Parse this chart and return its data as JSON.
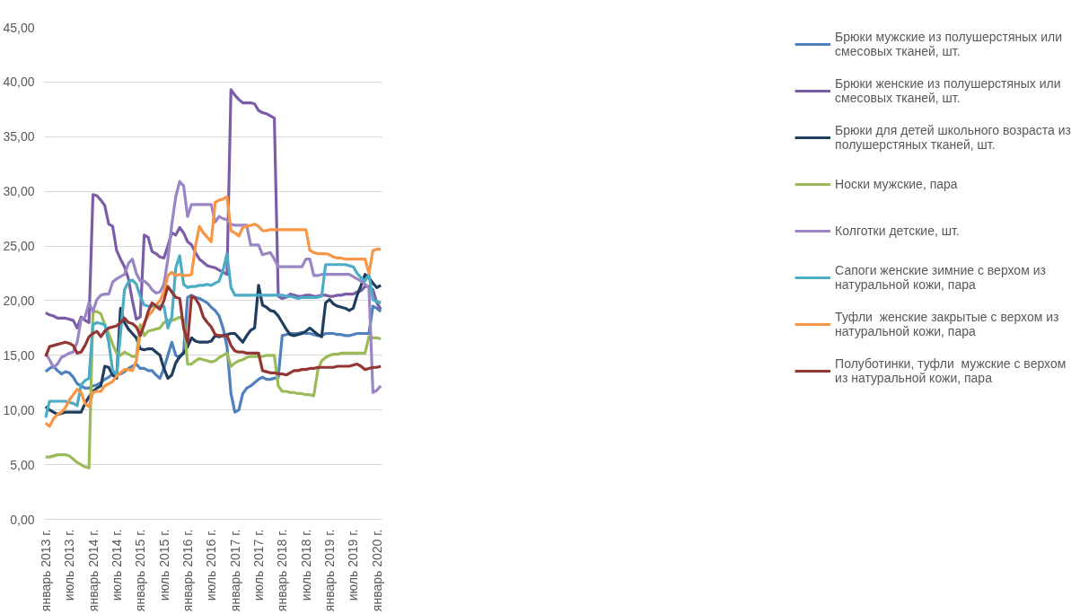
{
  "chart_data": {
    "type": "line",
    "categories": [
      "январь 2013 г.",
      null,
      null,
      null,
      null,
      null,
      "июль 2013 г.",
      null,
      null,
      null,
      null,
      null,
      "январь 2014 г.",
      null,
      null,
      null,
      null,
      null,
      "июль 2014 г.",
      null,
      null,
      null,
      null,
      null,
      "январь 2015 г.",
      null,
      null,
      null,
      null,
      null,
      "июль 2015 г.",
      null,
      null,
      null,
      null,
      null,
      "январь 2016 г.",
      null,
      null,
      null,
      null,
      null,
      "июль 2016 г.",
      null,
      null,
      null,
      null,
      null,
      "январь 2017 г.",
      null,
      null,
      null,
      null,
      null,
      "июль 2017 г.",
      null,
      null,
      null,
      null,
      null,
      "январь 2018 г.",
      null,
      null,
      null,
      null,
      null,
      "июль 2018 г.",
      null,
      null,
      null,
      null,
      null,
      "январь 2019 г.",
      null,
      null,
      null,
      null,
      null,
      "июль 2019 г.",
      null,
      null,
      null,
      null,
      null,
      "январь 2020 г.",
      null
    ],
    "ylim": [
      0,
      45
    ],
    "yticks": [
      {
        "value": 0,
        "label": "0,00"
      },
      {
        "value": 5,
        "label": "5,00"
      },
      {
        "value": 10,
        "label": "10,00"
      },
      {
        "value": 15,
        "label": "15,00"
      },
      {
        "value": 20,
        "label": "20,00"
      },
      {
        "value": 25,
        "label": "25,00"
      },
      {
        "value": 30,
        "label": "30,00"
      },
      {
        "value": 35,
        "label": "35,00"
      },
      {
        "value": 40,
        "label": "40,00"
      },
      {
        "value": 45,
        "label": "45,00"
      }
    ],
    "grid": "y",
    "legend": "right",
    "marker": "none",
    "line_style": "solid",
    "series": [
      {
        "name": "Брюки мужские из полушерстяных или смесовых тканей, шт.",
        "color": "#4f81bd",
        "values": [
          13.5,
          13.8,
          14.0,
          13.6,
          13.3,
          13.5,
          13.4,
          13.0,
          12.4,
          12.2,
          12.0,
          12.0,
          12.2,
          12.3,
          12.5,
          12.8,
          13.0,
          13.3,
          13.2,
          13.3,
          13.5,
          13.8,
          14.0,
          14.2,
          13.8,
          13.8,
          13.6,
          13.6,
          13.2,
          12.9,
          13.8,
          15.0,
          16.2,
          15.0,
          14.8,
          15.3,
          20.3,
          20.5,
          20.3,
          20.2,
          20.0,
          19.8,
          19.4,
          19.1,
          18.6,
          17.5,
          15.8,
          11.5,
          9.8,
          10.0,
          11.5,
          12.0,
          12.2,
          12.5,
          12.8,
          13.0,
          12.8,
          12.8,
          12.9,
          13.0,
          16.8,
          16.9,
          17.0,
          17.0,
          17.0,
          17.1,
          17.0,
          17.0,
          16.9,
          16.8,
          16.8,
          17.0,
          17.0,
          17.0,
          16.9,
          16.9,
          16.8,
          16.8,
          16.9,
          17.0,
          17.0,
          17.0,
          17.0,
          19.5,
          19.3,
          19.0
        ]
      },
      {
        "name": "Брюки женские из полушерстяных или смесовых тканей, шт.",
        "color": "#7b5ea7",
        "values": [
          18.9,
          18.7,
          18.6,
          18.4,
          18.4,
          18.4,
          18.3,
          18.2,
          17.5,
          18.5,
          18.2,
          18.0,
          29.7,
          29.6,
          29.2,
          28.7,
          27.0,
          26.8,
          24.6,
          23.8,
          23.1,
          22.0,
          20.0,
          18.3,
          18.5,
          26.0,
          25.8,
          24.5,
          24.3,
          24.0,
          23.9,
          25.0,
          26.2,
          26.0,
          26.7,
          26.2,
          25.4,
          25.1,
          24.4,
          23.8,
          23.5,
          23.2,
          23.1,
          23.0,
          22.8,
          22.6,
          22.4,
          39.3,
          38.8,
          38.4,
          38.1,
          38.1,
          38.1,
          38.0,
          37.4,
          37.2,
          37.1,
          36.9,
          36.7,
          20.4,
          20.2,
          20.3,
          20.6,
          20.5,
          20.4,
          20.4,
          20.5,
          20.5,
          20.4,
          20.4,
          20.5,
          20.5,
          20.4,
          20.4,
          20.5,
          20.5,
          20.6,
          20.6,
          20.6,
          20.8,
          20.9,
          21.3,
          21.3,
          21.0,
          19.8,
          19.2
        ]
      },
      {
        "name": "Брюки для детей школьного возраста из полушерстяных тканей, шт.",
        "color": "#1f3d5f",
        "values": [
          10.3,
          10.0,
          9.8,
          9.6,
          9.7,
          9.8,
          9.8,
          9.8,
          9.8,
          9.8,
          10.6,
          11.2,
          11.7,
          12.0,
          12.2,
          14.0,
          13.9,
          13.2,
          12.9,
          19.3,
          18.0,
          17.4,
          17.0,
          16.6,
          15.6,
          15.5,
          15.6,
          15.6,
          15.3,
          15.0,
          13.8,
          12.9,
          13.2,
          14.3,
          14.9,
          15.2,
          15.8,
          16.6,
          16.3,
          16.2,
          16.2,
          16.2,
          16.3,
          16.8,
          16.7,
          16.8,
          16.9,
          17.0,
          17.0,
          16.6,
          16.2,
          16.8,
          17.3,
          17.5,
          21.4,
          19.6,
          19.4,
          19.1,
          19.0,
          18.6,
          18.0,
          17.4,
          16.9,
          16.8,
          16.9,
          17.0,
          17.2,
          17.5,
          17.2,
          16.9,
          16.7,
          19.8,
          20.1,
          19.7,
          19.5,
          19.4,
          19.3,
          19.1,
          19.3,
          20.5,
          21.4,
          22.4,
          22.1,
          21.6,
          21.2,
          21.4
        ]
      },
      {
        "name": "Носки мужские, пара",
        "color": "#9bbb59",
        "values": [
          5.7,
          5.7,
          5.8,
          5.9,
          5.9,
          5.9,
          5.8,
          5.5,
          5.2,
          5.0,
          4.8,
          4.7,
          19.0,
          19.0,
          18.8,
          17.8,
          17.0,
          16.0,
          15.2,
          15.0,
          15.3,
          15.1,
          14.9,
          14.9,
          17.8,
          16.8,
          17.2,
          17.3,
          17.4,
          17.5,
          18.0,
          18.2,
          18.2,
          18.3,
          18.5,
          18.2,
          14.2,
          14.2,
          14.5,
          14.7,
          14.6,
          14.5,
          14.4,
          14.5,
          14.8,
          15.0,
          15.2,
          14.0,
          14.3,
          14.5,
          14.6,
          14.8,
          14.9,
          14.9,
          14.9,
          14.9,
          15.0,
          15.0,
          15.0,
          12.2,
          11.7,
          11.7,
          11.6,
          11.6,
          11.5,
          11.5,
          11.4,
          11.4,
          11.3,
          13.6,
          14.5,
          14.8,
          15.0,
          15.1,
          15.1,
          15.2,
          15.2,
          15.2,
          15.2,
          15.2,
          15.2,
          15.2,
          16.7,
          16.6,
          16.6,
          16.5
        ]
      },
      {
        "name": "Колготки детские, шт.",
        "color": "#9a86c4",
        "values": [
          15.2,
          14.6,
          13.9,
          14.2,
          14.8,
          15.0,
          15.2,
          15.3,
          16.2,
          18.3,
          18.5,
          19.8,
          19.0,
          20.1,
          20.5,
          20.6,
          20.6,
          21.7,
          22.0,
          22.2,
          22.4,
          23.4,
          23.8,
          22.5,
          21.8,
          21.8,
          21.5,
          21.0,
          20.7,
          20.8,
          21.5,
          23.8,
          27.0,
          29.5,
          30.9,
          30.5,
          27.7,
          28.8,
          28.8,
          28.8,
          28.8,
          28.8,
          28.8,
          27.2,
          27.7,
          27.5,
          27.4,
          27.0,
          26.9,
          26.9,
          26.9,
          26.9,
          25.1,
          25.1,
          25.1,
          24.2,
          24.3,
          24.4,
          23.8,
          23.1,
          23.1,
          23.1,
          23.1,
          23.1,
          23.1,
          23.1,
          23.8,
          23.8,
          22.3,
          22.3,
          22.4,
          22.4,
          22.4,
          22.4,
          22.4,
          22.4,
          22.4,
          22.4,
          22.2,
          22.0,
          21.8,
          21.5,
          21.2,
          11.6,
          11.8,
          12.2
        ]
      },
      {
        "name": "Сапоги женские зимние с верхом из натуральной кожи, пара",
        "color": "#4bacc6",
        "values": [
          9.3,
          10.8,
          10.8,
          10.8,
          10.8,
          10.8,
          10.7,
          10.6,
          10.4,
          12.3,
          12.7,
          12.9,
          17.8,
          18.0,
          17.9,
          17.8,
          16.2,
          13.6,
          13.2,
          17.0,
          21.0,
          21.7,
          21.9,
          21.5,
          20.4,
          19.6,
          19.5,
          19.5,
          19.5,
          19.5,
          19.5,
          17.5,
          18.5,
          23.0,
          24.1,
          21.5,
          21.2,
          21.3,
          21.3,
          21.4,
          21.4,
          21.5,
          21.4,
          21.6,
          21.8,
          22.8,
          24.3,
          21.2,
          20.5,
          20.5,
          20.5,
          20.5,
          20.5,
          20.5,
          20.5,
          20.5,
          20.5,
          20.5,
          20.5,
          20.5,
          20.5,
          20.4,
          20.4,
          20.3,
          20.2,
          20.3,
          20.3,
          20.3,
          20.3,
          20.3,
          20.4,
          23.3,
          23.3,
          23.3,
          23.3,
          23.3,
          23.3,
          23.2,
          23.1,
          22.5,
          22.1,
          21.8,
          22.4,
          20.1,
          19.9,
          19.8
        ]
      },
      {
        "name": "Туфли  женские закрытые с верхом из натуральной кожи, пара",
        "color": "#f79646",
        "values": [
          8.8,
          8.5,
          9.2,
          9.6,
          9.8,
          10.2,
          10.9,
          11.4,
          11.9,
          11.6,
          10.6,
          10.3,
          11.6,
          11.7,
          11.7,
          12.2,
          12.4,
          12.6,
          13.1,
          13.4,
          13.7,
          13.7,
          13.6,
          14.5,
          17.0,
          18.0,
          18.6,
          19.0,
          19.6,
          20.0,
          20.8,
          22.3,
          22.6,
          22.3,
          22.4,
          22.3,
          22.3,
          22.4,
          25.0,
          26.8,
          26.2,
          25.8,
          25.4,
          29.0,
          29.2,
          29.3,
          29.5,
          26.4,
          26.2,
          25.9,
          26.7,
          26.8,
          26.9,
          27.0,
          26.8,
          26.4,
          26.4,
          26.5,
          26.5,
          26.5,
          26.5,
          26.5,
          26.5,
          26.5,
          26.5,
          26.5,
          26.5,
          24.6,
          24.4,
          24.3,
          24.3,
          24.3,
          24.2,
          24.0,
          23.9,
          23.9,
          23.8,
          23.8,
          23.8,
          23.8,
          23.8,
          23.8,
          22.5,
          24.6,
          24.7,
          24.7
        ]
      },
      {
        "name": "Полуботинки, туфли  мужские с верхом из натуральной кожи, пара",
        "color": "#943634",
        "values": [
          14.9,
          15.8,
          15.9,
          16.0,
          16.1,
          16.2,
          16.1,
          15.9,
          15.2,
          15.3,
          15.9,
          16.7,
          17.0,
          17.2,
          16.7,
          17.2,
          17.5,
          17.6,
          17.7,
          18.0,
          18.4,
          18.0,
          17.9,
          17.6,
          16.8,
          17.8,
          19.0,
          19.8,
          19.5,
          19.2,
          20.0,
          21.3,
          20.8,
          20.3,
          20.2,
          17.5,
          16.2,
          20.4,
          20.2,
          19.6,
          18.5,
          18.0,
          17.6,
          16.9,
          16.8,
          16.8,
          16.8,
          15.9,
          15.4,
          15.3,
          15.3,
          15.2,
          15.2,
          15.2,
          15.2,
          13.6,
          13.5,
          13.4,
          13.4,
          13.3,
          13.3,
          13.2,
          13.4,
          13.6,
          13.6,
          13.7,
          13.7,
          13.8,
          13.8,
          13.9,
          13.9,
          13.9,
          13.9,
          13.9,
          14.0,
          14.0,
          14.0,
          14.0,
          14.1,
          14.2,
          14.0,
          13.7,
          13.8,
          13.9,
          13.9,
          14.0
        ]
      }
    ]
  }
}
